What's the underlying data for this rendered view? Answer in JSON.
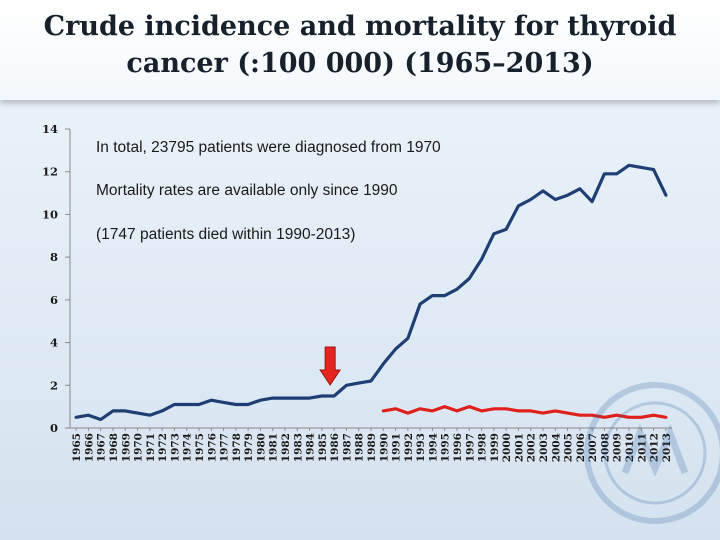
{
  "title": "Crude incidence and mortality for thyroid cancer (:100 000) (1965–2013)",
  "annotations": [
    "In total, 23795 patients were diagnosed from 1970",
    "Mortality rates are available only since 1990",
    "(1747 patients died within 1990-2013)"
  ],
  "colors": {
    "incidence": "#1f3f74",
    "mortality": "#e0201c",
    "arrow": "#e5241f"
  },
  "chart_data": {
    "type": "line",
    "title": "Crude incidence and mortality for thyroid cancer (:100 000) (1965–2013)",
    "xlabel": "",
    "ylabel": "",
    "ylim": [
      0,
      14
    ],
    "yticks": [
      0,
      2,
      4,
      6,
      8,
      10,
      12,
      14
    ],
    "grid": false,
    "legend": "none",
    "x": [
      1965,
      1966,
      1967,
      1968,
      1969,
      1970,
      1971,
      1972,
      1973,
      1974,
      1975,
      1976,
      1977,
      1978,
      1979,
      1980,
      1981,
      1982,
      1983,
      1984,
      1985,
      1986,
      1987,
      1988,
      1989,
      1990,
      1991,
      1992,
      1993,
      1994,
      1995,
      1996,
      1997,
      1998,
      1999,
      2000,
      2001,
      2002,
      2003,
      2004,
      2005,
      2006,
      2007,
      2008,
      2009,
      2010,
      2011,
      2012,
      2013
    ],
    "series": [
      {
        "values": [
          0.5,
          0.6,
          0.4,
          0.8,
          0.8,
          0.7,
          0.6,
          0.8,
          1.1,
          1.1,
          1.1,
          1.3,
          1.2,
          1.1,
          1.1,
          1.3,
          1.4,
          1.4,
          1.4,
          1.4,
          1.5,
          1.5,
          2.0,
          2.1,
          2.2,
          3.0,
          3.7,
          4.2,
          5.8,
          6.2,
          6.2,
          6.5,
          7.0,
          7.9,
          9.1,
          9.3,
          10.4,
          10.7,
          11.1,
          10.7,
          10.9,
          11.2,
          10.6,
          11.9,
          11.9,
          12.3,
          12.2,
          12.1,
          10.9
        ]
      },
      {
        "values": [
          null,
          null,
          null,
          null,
          null,
          null,
          null,
          null,
          null,
          null,
          null,
          null,
          null,
          null,
          null,
          null,
          null,
          null,
          null,
          null,
          null,
          null,
          null,
          null,
          null,
          0.8,
          0.9,
          0.7,
          0.9,
          0.8,
          1.0,
          0.8,
          1.0,
          0.8,
          0.9,
          0.9,
          0.8,
          0.8,
          0.7,
          0.8,
          0.7,
          0.6,
          0.6,
          0.5,
          0.6,
          0.5,
          0.5,
          0.6,
          0.5
        ]
      }
    ],
    "annotation_arrow_year": 1986
  }
}
